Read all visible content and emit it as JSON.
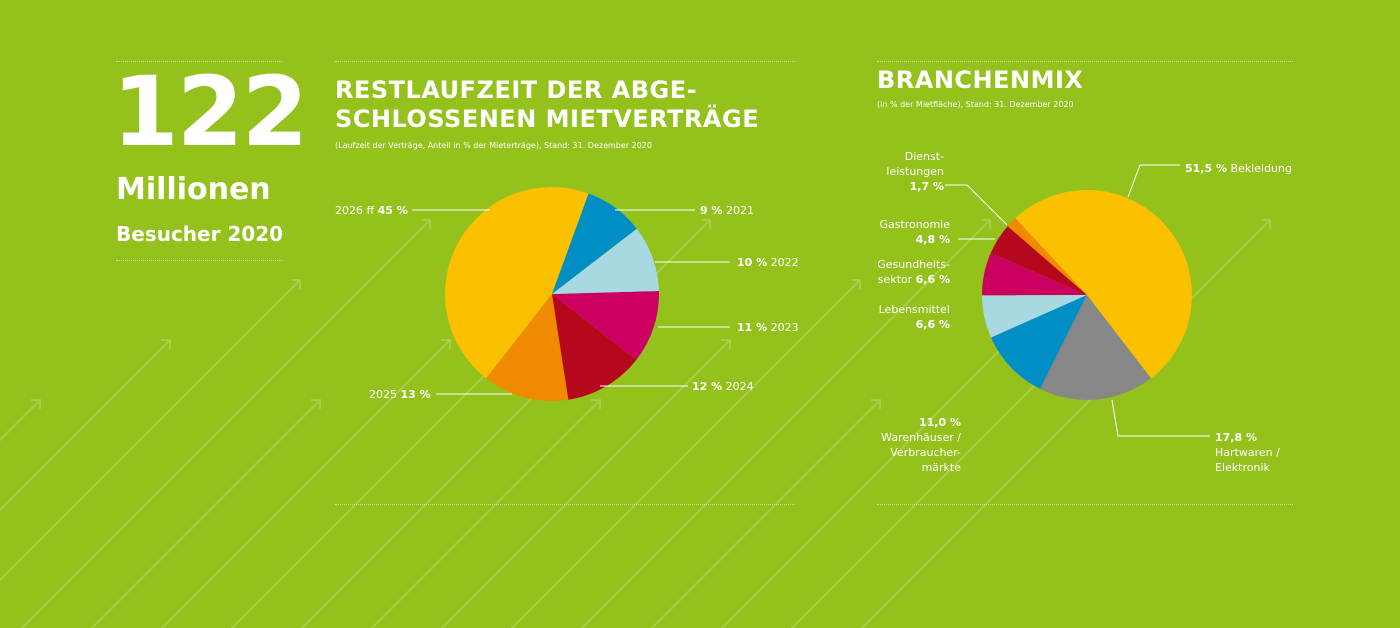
{
  "stat": {
    "number": "122",
    "unit": "Millionen",
    "label": "Besucher 2020"
  },
  "chart_data": [
    {
      "type": "pie",
      "title": "RESTLAUFZEIT DER ABGE- SCHLOSSENEN MIETVERTRÄGE",
      "title_line1": "RESTLAUFZEIT DER ABGE-",
      "title_line2": "SCHLOSSENEN MIETVERTRÄGE",
      "subtitle": "(Laufzeit der Verträge, Anteil in % der Mieterträge), Stand: 31. Dezember 2020",
      "slices": [
        {
          "label": "2021",
          "value": 9,
          "value_text": "9 %",
          "color": "#008ec4"
        },
        {
          "label": "2022",
          "value": 10,
          "value_text": "10 %",
          "color": "#a8d8e0"
        },
        {
          "label": "2023",
          "value": 11,
          "value_text": "11 %",
          "color": "#cc0060"
        },
        {
          "label": "2024",
          "value": 12,
          "value_text": "12 %",
          "color": "#b5081c"
        },
        {
          "label": "2025",
          "value": 13,
          "value_text": "13 %",
          "color": "#f08a00"
        },
        {
          "label": "2026 ff",
          "value": 45,
          "value_text": "45 %",
          "color": "#fbc000"
        }
      ]
    },
    {
      "type": "pie",
      "title": "BRANCHENMIX",
      "subtitle": "(in % der Mietfläche), Stand: 31. Dezember 2020",
      "slices": [
        {
          "label": "Bekleidung",
          "value": 51.5,
          "value_text": "51,5 %",
          "color": "#fbc000"
        },
        {
          "label": "Hartwaren / Elektronik",
          "l1": "Hartwaren /",
          "l2": "Elektronik",
          "value": 17.8,
          "value_text": "17,8 %",
          "color": "#878787"
        },
        {
          "label": "Warenhäuser / Verbrauchermärkte",
          "l1": "Warenhäuser /",
          "l2": "Verbraucher-",
          "l3": "märkte",
          "value": 11.0,
          "value_text": "11,0 %",
          "color": "#008ec4"
        },
        {
          "label": "Lebensmittel",
          "value": 6.6,
          "value_text": "6,6 %",
          "color": "#a8d8e0"
        },
        {
          "label": "Gesundheitssektor",
          "l1": "Gesundheits-",
          "l2": "sektor",
          "value": 6.6,
          "value_text": "6,6 %",
          "color": "#cc0060"
        },
        {
          "label": "Gastronomie",
          "value": 4.8,
          "value_text": "4,8 %",
          "color": "#b5081c"
        },
        {
          "label": "Dienstleistungen",
          "l1": "Dienst-",
          "l2": "leistungen",
          "value": 1.7,
          "value_text": "1,7 %",
          "color": "#f08a00"
        }
      ]
    }
  ]
}
